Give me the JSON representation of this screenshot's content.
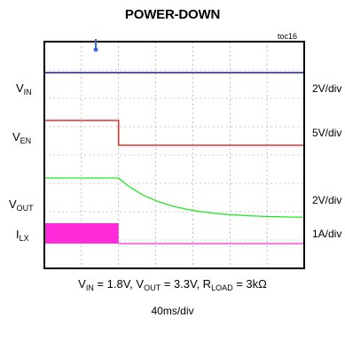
{
  "title": "POWER-DOWN",
  "figure_id": "toc16",
  "conditions": {
    "vin_sym": "V",
    "vin_sub": "IN",
    "vin_val": " = 1.8V, ",
    "vout_sym": "V",
    "vout_sub": "OUT",
    "vout_val": " = 3.3V, ",
    "rload_sym": "R",
    "rload_sub": "LOAD",
    "rload_val": " = 3kΩ"
  },
  "time_scale": "40ms/div",
  "chart_data": {
    "type": "line",
    "title": "POWER-DOWN",
    "x_unit": "ms",
    "x_per_div": 40,
    "x_divisions": 7,
    "xlim": [
      0,
      280
    ],
    "channels": [
      {
        "id": "vin",
        "sym": "V",
        "sub": "IN",
        "scale": "2V/div",
        "color": "#1a1aa6",
        "style": "line"
      },
      {
        "id": "ven",
        "sym": "V",
        "sub": "EN",
        "scale": "5V/div",
        "color": "#e8322a",
        "style": "line"
      },
      {
        "id": "vout",
        "sym": "V",
        "sub": "OUT",
        "scale": "2V/div",
        "color": "#22e622",
        "style": "line"
      },
      {
        "id": "ilx",
        "sym": "I",
        "sub": "LX",
        "scale": "1A/div",
        "color": "#ff2bd9",
        "style": "band"
      }
    ]
  }
}
